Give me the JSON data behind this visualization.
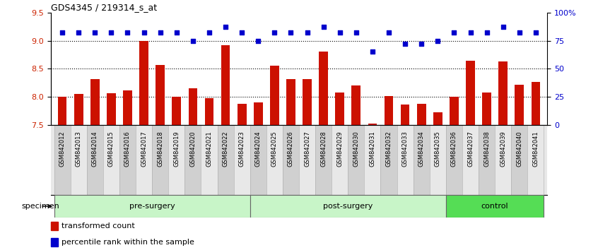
{
  "title": "GDS4345 / 219314_s_at",
  "categories": [
    "GSM842012",
    "GSM842013",
    "GSM842014",
    "GSM842015",
    "GSM842016",
    "GSM842017",
    "GSM842018",
    "GSM842019",
    "GSM842020",
    "GSM842021",
    "GSM842022",
    "GSM842023",
    "GSM842024",
    "GSM842025",
    "GSM842026",
    "GSM842027",
    "GSM842028",
    "GSM842029",
    "GSM842030",
    "GSM842031",
    "GSM842032",
    "GSM842033",
    "GSM842034",
    "GSM842035",
    "GSM842036",
    "GSM842037",
    "GSM842038",
    "GSM842039",
    "GSM842040",
    "GSM842041"
  ],
  "bar_values": [
    8.0,
    8.05,
    8.32,
    8.07,
    8.12,
    9.0,
    8.57,
    8.0,
    8.15,
    7.98,
    8.92,
    7.88,
    7.9,
    8.55,
    8.32,
    8.32,
    8.8,
    8.08,
    8.2,
    7.52,
    8.02,
    7.87,
    7.88,
    7.73,
    8.0,
    8.64,
    8.08,
    8.63,
    8.22,
    8.27
  ],
  "percentile_values": [
    82,
    82,
    82,
    82,
    82,
    82,
    82,
    82,
    75,
    82,
    87,
    82,
    75,
    82,
    82,
    82,
    87,
    82,
    82,
    65,
    82,
    72,
    72,
    75,
    82,
    82,
    82,
    87,
    82,
    82
  ],
  "groups": [
    {
      "label": "pre-surgery",
      "start": 0,
      "end": 12
    },
    {
      "label": "post-surgery",
      "start": 12,
      "end": 24
    },
    {
      "label": "control",
      "start": 24,
      "end": 30
    }
  ],
  "group_colors": [
    "#c8f5c8",
    "#c8f5c8",
    "#55dd55"
  ],
  "bar_color": "#cc1100",
  "dot_color": "#0000cc",
  "ylim_left": [
    7.5,
    9.5
  ],
  "ylim_right": [
    0,
    100
  ],
  "yticks_left": [
    7.5,
    8.0,
    8.5,
    9.0,
    9.5
  ],
  "yticks_right": [
    0,
    25,
    50,
    75,
    100
  ],
  "ytick_labels_right": [
    "0",
    "25",
    "50",
    "75",
    "100%"
  ],
  "gridlines": [
    8.0,
    8.5,
    9.0
  ],
  "bg_color": "#ffffff",
  "xlabel": "specimen",
  "legend_items": [
    "transformed count",
    "percentile rank within the sample"
  ]
}
